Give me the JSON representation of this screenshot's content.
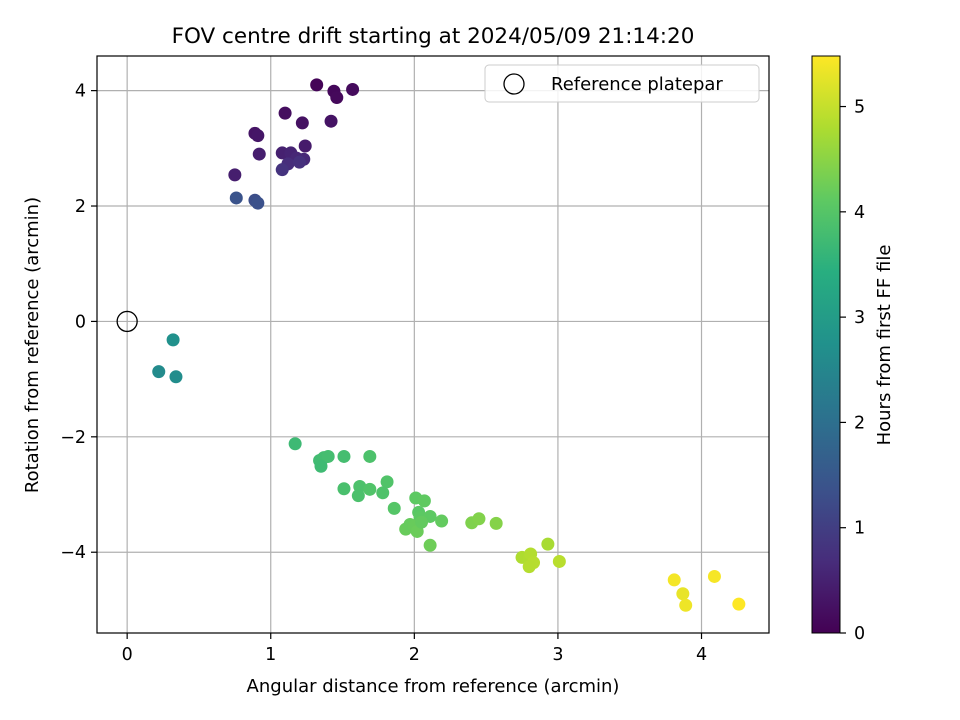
{
  "chart_data": {
    "type": "scatter",
    "title": "FOV centre drift starting at 2024/05/09 21:14:20",
    "xlabel": "Angular distance from reference (arcmin)",
    "ylabel": "Rotation from reference (arcmin)",
    "xlim": [
      -0.21,
      4.47
    ],
    "ylim": [
      -5.4,
      4.6
    ],
    "xticks": [
      0,
      1,
      2,
      3,
      4
    ],
    "yticks": [
      -4,
      -2,
      0,
      2,
      4
    ],
    "grid": true,
    "legend": {
      "position": "top-right",
      "entries": [
        "Reference platepar"
      ]
    },
    "reference_point": {
      "x": 0,
      "y": 0,
      "label": "Reference platepar"
    },
    "colorbar": {
      "label": "Hours from first FF file",
      "range": [
        0,
        5.48
      ],
      "ticks": [
        0,
        1,
        2,
        3,
        4,
        5
      ],
      "colormap": "viridis"
    },
    "points": [
      {
        "x": 1.32,
        "y": 4.1,
        "h": 0.05
      },
      {
        "x": 1.44,
        "y": 3.99,
        "h": 0.1
      },
      {
        "x": 1.46,
        "y": 3.88,
        "h": 0.12
      },
      {
        "x": 1.57,
        "y": 4.02,
        "h": 0.15
      },
      {
        "x": 1.1,
        "y": 3.61,
        "h": 0.2
      },
      {
        "x": 1.22,
        "y": 3.44,
        "h": 0.25
      },
      {
        "x": 1.42,
        "y": 3.47,
        "h": 0.28
      },
      {
        "x": 0.89,
        "y": 3.26,
        "h": 0.3
      },
      {
        "x": 0.91,
        "y": 3.22,
        "h": 0.33
      },
      {
        "x": 1.24,
        "y": 3.04,
        "h": 0.4
      },
      {
        "x": 0.92,
        "y": 2.9,
        "h": 0.45
      },
      {
        "x": 1.08,
        "y": 2.92,
        "h": 0.5
      },
      {
        "x": 1.14,
        "y": 2.92,
        "h": 0.55
      },
      {
        "x": 1.18,
        "y": 2.83,
        "h": 0.6
      },
      {
        "x": 1.23,
        "y": 2.81,
        "h": 0.62
      },
      {
        "x": 1.12,
        "y": 2.73,
        "h": 0.7
      },
      {
        "x": 1.2,
        "y": 2.76,
        "h": 0.75
      },
      {
        "x": 1.08,
        "y": 2.63,
        "h": 0.8
      },
      {
        "x": 0.75,
        "y": 2.54,
        "h": 0.45
      },
      {
        "x": 0.76,
        "y": 2.14,
        "h": 1.4
      },
      {
        "x": 0.89,
        "y": 2.1,
        "h": 1.3
      },
      {
        "x": 0.91,
        "y": 2.05,
        "h": 1.35
      },
      {
        "x": 0.32,
        "y": -0.32,
        "h": 2.75
      },
      {
        "x": 0.22,
        "y": -0.87,
        "h": 2.6
      },
      {
        "x": 0.34,
        "y": -0.96,
        "h": 2.65
      },
      {
        "x": 1.17,
        "y": -2.12,
        "h": 3.7
      },
      {
        "x": 1.34,
        "y": -2.41,
        "h": 3.75
      },
      {
        "x": 1.37,
        "y": -2.36,
        "h": 3.78
      },
      {
        "x": 1.4,
        "y": -2.34,
        "h": 3.8
      },
      {
        "x": 1.35,
        "y": -2.51,
        "h": 3.72
      },
      {
        "x": 1.51,
        "y": -2.34,
        "h": 3.8
      },
      {
        "x": 1.69,
        "y": -2.34,
        "h": 3.9
      },
      {
        "x": 1.51,
        "y": -2.9,
        "h": 3.85
      },
      {
        "x": 1.62,
        "y": -2.86,
        "h": 3.9
      },
      {
        "x": 1.69,
        "y": -2.91,
        "h": 3.95
      },
      {
        "x": 1.61,
        "y": -3.02,
        "h": 3.88
      },
      {
        "x": 1.81,
        "y": -2.78,
        "h": 3.95
      },
      {
        "x": 1.78,
        "y": -2.97,
        "h": 3.92
      },
      {
        "x": 1.86,
        "y": -3.24,
        "h": 4.0
      },
      {
        "x": 2.01,
        "y": -3.06,
        "h": 4.1
      },
      {
        "x": 2.07,
        "y": -3.11,
        "h": 4.12
      },
      {
        "x": 2.03,
        "y": -3.31,
        "h": 4.05
      },
      {
        "x": 2.04,
        "y": -3.4,
        "h": 4.08
      },
      {
        "x": 2.11,
        "y": -3.38,
        "h": 4.1
      },
      {
        "x": 2.19,
        "y": -3.46,
        "h": 4.15
      },
      {
        "x": 1.94,
        "y": -3.6,
        "h": 4.2
      },
      {
        "x": 1.97,
        "y": -3.52,
        "h": 4.18
      },
      {
        "x": 2.0,
        "y": -3.55,
        "h": 4.2
      },
      {
        "x": 2.02,
        "y": -3.64,
        "h": 4.22
      },
      {
        "x": 2.05,
        "y": -3.48,
        "h": 4.15
      },
      {
        "x": 2.11,
        "y": -3.88,
        "h": 4.25
      },
      {
        "x": 2.4,
        "y": -3.49,
        "h": 4.4
      },
      {
        "x": 2.45,
        "y": -3.42,
        "h": 4.42
      },
      {
        "x": 2.57,
        "y": -3.5,
        "h": 4.45
      },
      {
        "x": 2.75,
        "y": -4.09,
        "h": 4.8
      },
      {
        "x": 2.8,
        "y": -4.12,
        "h": 4.82
      },
      {
        "x": 2.81,
        "y": -4.03,
        "h": 4.85
      },
      {
        "x": 2.83,
        "y": -4.18,
        "h": 4.88
      },
      {
        "x": 2.8,
        "y": -4.25,
        "h": 4.86
      },
      {
        "x": 2.93,
        "y": -3.86,
        "h": 4.75
      },
      {
        "x": 3.01,
        "y": -4.16,
        "h": 4.9
      },
      {
        "x": 3.81,
        "y": -4.48,
        "h": 5.4
      },
      {
        "x": 3.87,
        "y": -4.72,
        "h": 5.3
      },
      {
        "x": 3.89,
        "y": -4.92,
        "h": 5.35
      },
      {
        "x": 4.09,
        "y": -4.42,
        "h": 5.42
      },
      {
        "x": 4.26,
        "y": -4.9,
        "h": 5.48
      }
    ]
  }
}
